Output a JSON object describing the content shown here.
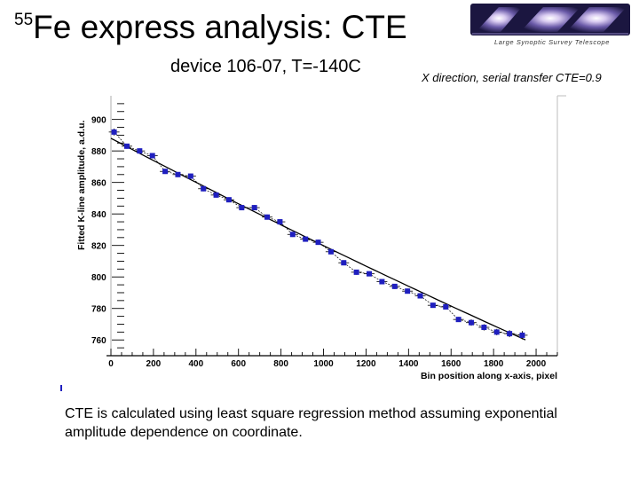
{
  "slide": {
    "title_superscript": "55",
    "title_main": "Fe express analysis: CTE",
    "subtitle": "device 106-07, T=-140C",
    "note": "X direction, serial transfer CTE=0.9",
    "logo_text": "Large Synoptic Survey Telescope",
    "caption": "CTE is calculated using least square regression method assuming exponential amplitude dependence on coordinate."
  },
  "colors": {
    "marker": "#1f1fbf",
    "line": "#000000",
    "axis": "#000000",
    "frame": "#c8c8c8"
  },
  "chart_data": {
    "type": "scatter",
    "xlabel": "Bin position along x-axis, pixel",
    "ylabel": "Fitted K-line amplitude, a.d.u.",
    "xlim": [
      0,
      2100
    ],
    "ylim": [
      750,
      915
    ],
    "x_ticks": [
      0,
      200,
      400,
      600,
      800,
      1000,
      1200,
      1400,
      1600,
      1800,
      2000
    ],
    "y_ticks": [
      760,
      780,
      800,
      820,
      840,
      860,
      880,
      900
    ],
    "x_tick_labels": [
      "0",
      "200",
      "400",
      "600",
      "800",
      "1000",
      "1200",
      "1400",
      "1600",
      "1800",
      "2000"
    ],
    "y_tick_labels": [
      "760",
      "780",
      "800",
      "820",
      "840",
      "860",
      "880",
      "900"
    ],
    "series": [
      {
        "x": [
          15,
          75,
          135,
          195,
          255,
          315,
          375,
          435,
          495,
          555,
          615,
          675,
          735,
          795,
          855,
          915,
          975,
          1035,
          1095,
          1155,
          1215,
          1275,
          1335,
          1395,
          1455,
          1515,
          1575,
          1635,
          1695,
          1755,
          1815,
          1875,
          1935
        ],
        "y": [
          892,
          883,
          880,
          877,
          867,
          865,
          864,
          856,
          852,
          849,
          844,
          844,
          838,
          835,
          827,
          824,
          822,
          816,
          809,
          803,
          802,
          797,
          794,
          791,
          788,
          782,
          781,
          773,
          771,
          768,
          765,
          764,
          763
        ],
        "err": [
          2.2,
          1.6,
          1.6,
          1.6,
          1.6,
          1.6,
          1.6,
          1.6,
          1.6,
          1.6,
          1.6,
          1.6,
          1.6,
          1.6,
          1.6,
          1.6,
          1.6,
          1.6,
          1.6,
          1.6,
          1.6,
          1.6,
          1.6,
          1.6,
          1.6,
          1.6,
          1.6,
          1.6,
          2.0,
          2.0,
          2.0,
          2.2,
          2.6
        ]
      }
    ],
    "fit": {
      "type": "exponential",
      "x": [
        0,
        1950
      ],
      "y": [
        888,
        760
      ]
    }
  }
}
